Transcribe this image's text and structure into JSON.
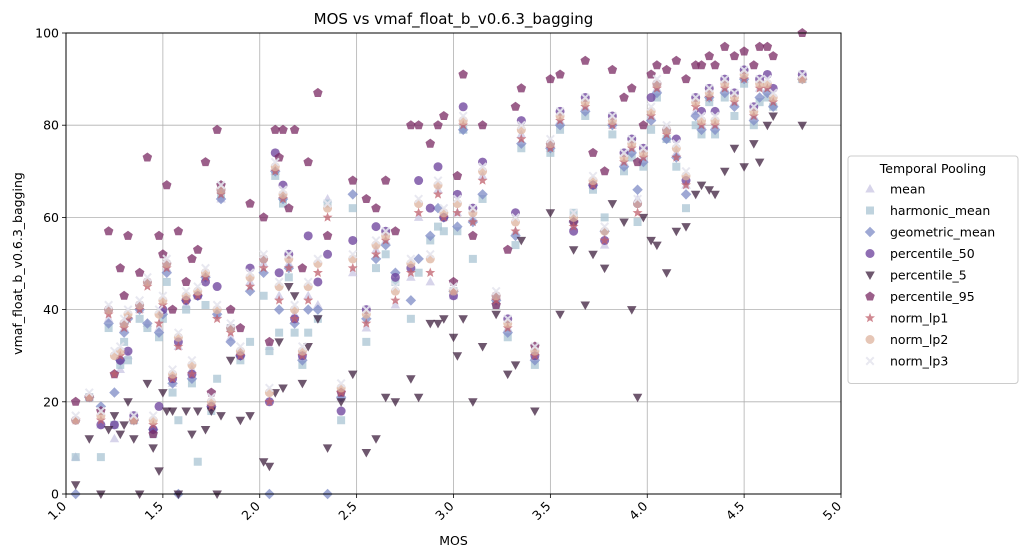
{
  "chart_data": {
    "type": "scatter",
    "title": "MOS vs vmaf_float_b_v0.6.3_bagging",
    "xlabel": "MOS",
    "ylabel": "vmaf_float_b_v0.6.3_bagging",
    "xlim": [
      1.0,
      5.0
    ],
    "ylim": [
      0,
      100
    ],
    "xticks": [
      "1.0",
      "1.5",
      "2.0",
      "2.5",
      "3.0",
      "3.5",
      "4.0",
      "4.5",
      "5.0"
    ],
    "yticks": [
      "0",
      "20",
      "40",
      "60",
      "80",
      "100"
    ],
    "grid": true,
    "legend": {
      "title": "Temporal Pooling",
      "placement": "center-right-outside"
    },
    "x": [
      1.05,
      1.12,
      1.18,
      1.22,
      1.25,
      1.28,
      1.3,
      1.32,
      1.35,
      1.38,
      1.42,
      1.45,
      1.48,
      1.5,
      1.52,
      1.55,
      1.58,
      1.62,
      1.65,
      1.68,
      1.72,
      1.75,
      1.78,
      1.8,
      1.85,
      1.9,
      1.95,
      2.02,
      2.05,
      2.08,
      2.1,
      2.12,
      2.15,
      2.18,
      2.22,
      2.25,
      2.3,
      2.35,
      2.42,
      2.48,
      2.55,
      2.6,
      2.65,
      2.7,
      2.78,
      2.82,
      2.88,
      2.92,
      2.95,
      3.0,
      3.02,
      3.05,
      3.1,
      3.15,
      3.22,
      3.28,
      3.32,
      3.35,
      3.42,
      3.5,
      3.55,
      3.62,
      3.68,
      3.72,
      3.78,
      3.82,
      3.88,
      3.92,
      3.95,
      3.98,
      4.02,
      4.05,
      4.1,
      4.15,
      4.2,
      4.25,
      4.28,
      4.32,
      4.35,
      4.4,
      4.45,
      4.5,
      4.55,
      4.58,
      4.62,
      4.65,
      4.8
    ],
    "series": [
      {
        "name": "mean",
        "color": "#c9c6e3",
        "marker": "triangle-up",
        "values": [
          8,
          21,
          15,
          38,
          12,
          27,
          36,
          30,
          16,
          40,
          37,
          14,
          36,
          40,
          49,
          24,
          32,
          41,
          27,
          43,
          47,
          19,
          39,
          64,
          34,
          31,
          46,
          50,
          32,
          70,
          43,
          65,
          50,
          39,
          30,
          43,
          41,
          64,
          21,
          48,
          36,
          53,
          55,
          41,
          47,
          60,
          46,
          66,
          60,
          43,
          61,
          79,
          60,
          69,
          43,
          36,
          57,
          78,
          30,
          75,
          81,
          58,
          84,
          67,
          54,
          80,
          72,
          75,
          64,
          73,
          82,
          88,
          77,
          74,
          67,
          83,
          80,
          86,
          80,
          88,
          85,
          90,
          82,
          88,
          88,
          85,
          90
        ]
      },
      {
        "name": "harmonic_mean",
        "color": "#a9c4d3",
        "marker": "square",
        "values": [
          8,
          21,
          8,
          36,
          15,
          28,
          33,
          29,
          16,
          38,
          36,
          13,
          34,
          38,
          46,
          22,
          16,
          40,
          24,
          7,
          41,
          18,
          25,
          65,
          36,
          29,
          33,
          43,
          31,
          69,
          35,
          63,
          47,
          35,
          28,
          35,
          38,
          63,
          16,
          62,
          33,
          49,
          52,
          46,
          38,
          48,
          55,
          58,
          57,
          44,
          57,
          79,
          51,
          64,
          41,
          34,
          54,
          75,
          28,
          74,
          79,
          61,
          82,
          66,
          60,
          78,
          70,
          73,
          59,
          71,
          79,
          86,
          77,
          71,
          62,
          80,
          78,
          85,
          78,
          86,
          82,
          89,
          80,
          85,
          86,
          84,
          90
        ]
      },
      {
        "name": "geometric_mean",
        "color": "#7e8bc5",
        "marker": "diamond",
        "values": [
          0,
          21,
          19,
          37,
          22,
          29,
          35,
          38,
          16,
          40,
          37,
          14,
          35,
          39,
          48,
          24,
          0,
          42,
          25,
          43,
          47,
          19,
          39,
          64,
          33,
          30,
          44,
          48,
          0,
          70,
          40,
          64,
          49,
          37,
          29,
          40,
          40,
          0,
          21,
          65,
          38,
          51,
          54,
          48,
          42,
          51,
          56,
          62,
          60,
          44,
          58,
          79,
          59,
          65,
          42,
          35,
          56,
          76,
          29,
          75,
          80,
          59,
          83,
          67,
          57,
          80,
          71,
          74,
          66,
          72,
          81,
          87,
          77,
          73,
          65,
          82,
          79,
          86,
          79,
          87,
          84,
          90,
          81,
          86,
          87,
          84,
          90
        ]
      },
      {
        "name": "percentile_50",
        "color": "#6a3d9a",
        "marker": "circle",
        "values": [
          16,
          21,
          15,
          40,
          15,
          29,
          37,
          31,
          17,
          41,
          46,
          14,
          19,
          40,
          50,
          25,
          33,
          42,
          26,
          43,
          46,
          19,
          45,
          66,
          36,
          30,
          49,
          51,
          20,
          74,
          48,
          67,
          52,
          38,
          30,
          56,
          46,
          52,
          18,
          55,
          40,
          58,
          57,
          47,
          49,
          68,
          62,
          71,
          60,
          43,
          65,
          84,
          62,
          72,
          43,
          38,
          61,
          81,
          30,
          76,
          83,
          57,
          86,
          67,
          55,
          82,
          74,
          77,
          63,
          75,
          86,
          89,
          79,
          77,
          68,
          86,
          83,
          88,
          83,
          90,
          87,
          92,
          84,
          90,
          91,
          88,
          91
        ]
      },
      {
        "name": "percentile_5",
        "color": "#3d1f3d",
        "marker": "triangle-down",
        "values": [
          2,
          12,
          0,
          14,
          17,
          13,
          15,
          20,
          12,
          0,
          24,
          10,
          5,
          22,
          18,
          18,
          0,
          18,
          13,
          18,
          14,
          18,
          0,
          17,
          29,
          16,
          17,
          7,
          6,
          22,
          33,
          23,
          45,
          43,
          24,
          32,
          38,
          10,
          20,
          26,
          9,
          12,
          21,
          20,
          25,
          21,
          37,
          37,
          38,
          34,
          30,
          38,
          20,
          32,
          39,
          26,
          28,
          55,
          18,
          61,
          39,
          53,
          41,
          52,
          49,
          63,
          59,
          40,
          21,
          60,
          55,
          54,
          48,
          57,
          58,
          65,
          67,
          66,
          65,
          70,
          75,
          71,
          76,
          72,
          80,
          82,
          80
        ]
      },
      {
        "name": "percentile_95",
        "color": "#7a2a63",
        "marker": "pentagon",
        "values": [
          20,
          21,
          18,
          57,
          26,
          49,
          43,
          56,
          16,
          48,
          73,
          13,
          56,
          52,
          67,
          40,
          57,
          46,
          51,
          53,
          72,
          22,
          79,
          67,
          40,
          36,
          63,
          60,
          33,
          79,
          73,
          79,
          62,
          79,
          49,
          72,
          87,
          56,
          22,
          68,
          64,
          62,
          68,
          57,
          80,
          80,
          76,
          80,
          82,
          46,
          69,
          91,
          56,
          80,
          41,
          53,
          84,
          88,
          32,
          90,
          91,
          59,
          94,
          74,
          70,
          92,
          86,
          88,
          72,
          80,
          91,
          93,
          92,
          94,
          90,
          93,
          93,
          95,
          93,
          97,
          95,
          96,
          93,
          97,
          97,
          95,
          100
        ]
      },
      {
        "name": "norm_lp1",
        "color": "#c0606c",
        "marker": "star",
        "values": [
          16,
          21,
          16,
          39,
          26,
          30,
          36,
          38,
          16,
          40,
          45,
          15,
          37,
          41,
          49,
          25,
          32,
          42,
          26,
          43,
          47,
          19,
          38,
          65,
          35,
          30,
          45,
          49,
          20,
          70,
          42,
          64,
          49,
          38,
          30,
          42,
          48,
          60,
          22,
          49,
          37,
          52,
          55,
          42,
          48,
          61,
          48,
          65,
          60,
          44,
          61,
          80,
          59,
          68,
          42,
          36,
          57,
          77,
          30,
          75,
          81,
          58,
          84,
          67,
          55,
          80,
          72,
          75,
          61,
          73,
          82,
          88,
          78,
          73,
          67,
          84,
          80,
          86,
          80,
          88,
          85,
          90,
          82,
          88,
          88,
          85,
          90
        ]
      },
      {
        "name": "norm_lp2",
        "color": "#ddb39d",
        "marker": "circle",
        "values": [
          16,
          21,
          17,
          40,
          30,
          31,
          37,
          39,
          16,
          41,
          46,
          16,
          39,
          42,
          50,
          26,
          34,
          43,
          28,
          44,
          48,
          20,
          40,
          66,
          36,
          31,
          47,
          51,
          22,
          71,
          45,
          65,
          51,
          40,
          31,
          45,
          50,
          62,
          23,
          51,
          39,
          54,
          56,
          44,
          50,
          63,
          51,
          67,
          61,
          44,
          63,
          81,
          61,
          70,
          43,
          37,
          59,
          79,
          31,
          76,
          82,
          60,
          85,
          68,
          57,
          81,
          73,
          76,
          63,
          74,
          83,
          89,
          79,
          75,
          69,
          85,
          81,
          87,
          81,
          89,
          86,
          91,
          83,
          89,
          89,
          86,
          90
        ]
      },
      {
        "name": "norm_lp3",
        "color": "#e6e6ee",
        "marker": "x",
        "values": [
          17,
          22,
          18,
          41,
          31,
          32,
          38,
          40,
          17,
          42,
          47,
          17,
          40,
          43,
          51,
          27,
          35,
          44,
          29,
          45,
          49,
          21,
          41,
          67,
          37,
          32,
          48,
          52,
          23,
          72,
          46,
          66,
          52,
          41,
          32,
          46,
          51,
          63,
          24,
          52,
          40,
          55,
          57,
          45,
          51,
          64,
          52,
          68,
          62,
          45,
          64,
          82,
          62,
          71,
          44,
          38,
          60,
          80,
          32,
          77,
          83,
          61,
          86,
          69,
          58,
          82,
          74,
          77,
          64,
          75,
          84,
          90,
          80,
          76,
          70,
          86,
          82,
          88,
          82,
          90,
          87,
          92,
          84,
          90,
          90,
          87,
          91
        ]
      }
    ]
  }
}
